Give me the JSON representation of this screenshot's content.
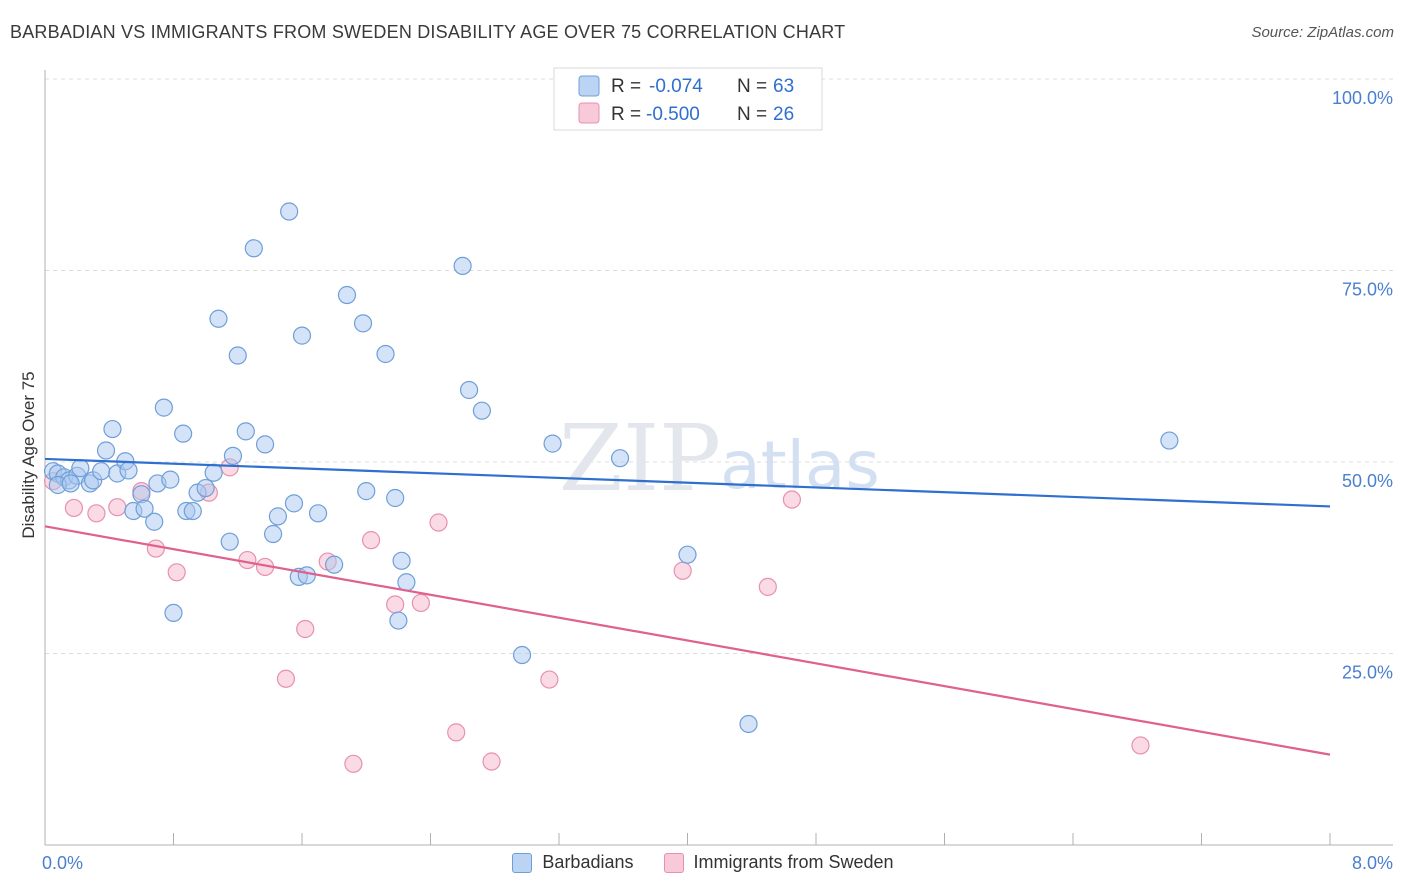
{
  "title": "BARBADIAN VS IMMIGRANTS FROM SWEDEN DISABILITY AGE OVER 75 CORRELATION CHART",
  "source": "Source: ZipAtlas.com",
  "watermark": {
    "zip": "ZIP",
    "atlas": "atlas"
  },
  "colors": {
    "blue_fill": "#a9c8f0",
    "blue_stroke": "#6f9fd8",
    "blue_line": "#2f6fcf",
    "pink_fill": "#f5b8cb",
    "pink_stroke": "#e890ad",
    "pink_line": "#e0608e",
    "tick_text": "#4a7fd0",
    "grid": "#dcdcdc"
  },
  "legend_box": {
    "rows": [
      {
        "r_label": "R =",
        "r_value": "-0.074",
        "n_label": "N =",
        "n_value": "63",
        "series": "blue"
      },
      {
        "r_label": "R =",
        "r_value": "-0.500",
        "n_label": "N =",
        "n_value": "26",
        "series": "pink"
      }
    ]
  },
  "chart_data": {
    "type": "scatter",
    "title": "BARBADIAN VS IMMIGRANTS FROM SWEDEN DISABILITY AGE OVER 75 CORRELATION CHART",
    "xlabel": "",
    "ylabel": "Disability Age Over 75",
    "xlim": [
      0,
      8
    ],
    "ylim": [
      0,
      100
    ],
    "x_tick_labels": [
      "0.0%",
      "8.0%"
    ],
    "y_ticks": [
      {
        "value": 25,
        "label": "25.0%"
      },
      {
        "value": 50,
        "label": "50.0%"
      },
      {
        "value": 75,
        "label": "75.0%"
      },
      {
        "value": 100,
        "label": "100.0%"
      }
    ],
    "series": [
      {
        "name": "Barbadians",
        "color": "blue",
        "trend": {
          "x": [
            0,
            8
          ],
          "y": [
            50.4,
            44.2
          ]
        },
        "points": [
          [
            0.05,
            48.8
          ],
          [
            0.08,
            48.5
          ],
          [
            0.12,
            48.0
          ],
          [
            0.15,
            47.6
          ],
          [
            0.2,
            48.2
          ],
          [
            0.22,
            49.2
          ],
          [
            0.28,
            47.2
          ],
          [
            0.3,
            47.6
          ],
          [
            0.35,
            48.8
          ],
          [
            0.38,
            51.5
          ],
          [
            0.42,
            54.3
          ],
          [
            0.45,
            48.5
          ],
          [
            0.5,
            50.1
          ],
          [
            0.52,
            48.9
          ],
          [
            0.55,
            43.6
          ],
          [
            0.6,
            45.8
          ],
          [
            0.62,
            43.9
          ],
          [
            0.68,
            42.2
          ],
          [
            0.7,
            47.2
          ],
          [
            0.74,
            57.1
          ],
          [
            0.78,
            47.7
          ],
          [
            0.86,
            53.7
          ],
          [
            0.88,
            43.6
          ],
          [
            0.92,
            43.6
          ],
          [
            0.95,
            46.0
          ],
          [
            1.0,
            46.6
          ],
          [
            1.05,
            48.6
          ],
          [
            1.08,
            68.7
          ],
          [
            1.15,
            39.6
          ],
          [
            1.17,
            50.8
          ],
          [
            1.2,
            63.9
          ],
          [
            1.25,
            54.0
          ],
          [
            1.3,
            77.9
          ],
          [
            1.37,
            52.3
          ],
          [
            1.42,
            40.6
          ],
          [
            1.45,
            42.9
          ],
          [
            1.52,
            82.7
          ],
          [
            1.55,
            44.6
          ],
          [
            1.6,
            66.5
          ],
          [
            1.58,
            35.0
          ],
          [
            1.63,
            35.2
          ],
          [
            1.7,
            43.3
          ],
          [
            1.8,
            36.6
          ],
          [
            1.88,
            71.8
          ],
          [
            1.98,
            68.1
          ],
          [
            2.0,
            46.2
          ],
          [
            2.12,
            64.1
          ],
          [
            2.18,
            45.3
          ],
          [
            2.22,
            37.1
          ],
          [
            2.25,
            34.3
          ],
          [
            2.2,
            29.3
          ],
          [
            2.6,
            75.6
          ],
          [
            2.64,
            59.4
          ],
          [
            2.72,
            56.7
          ],
          [
            2.97,
            24.8
          ],
          [
            3.16,
            52.4
          ],
          [
            3.58,
            50.5
          ],
          [
            4.0,
            37.9
          ],
          [
            4.38,
            15.8
          ],
          [
            7.0,
            52.8
          ],
          [
            0.08,
            47.0
          ],
          [
            0.16,
            47.2
          ],
          [
            0.8,
            30.3
          ]
        ]
      },
      {
        "name": "Immigrants from Sweden",
        "color": "pink",
        "trend": {
          "x": [
            0,
            8
          ],
          "y": [
            41.6,
            11.8
          ]
        },
        "points": [
          [
            0.05,
            47.5
          ],
          [
            0.18,
            44.0
          ],
          [
            0.32,
            43.3
          ],
          [
            0.45,
            44.1
          ],
          [
            0.6,
            46.2
          ],
          [
            0.69,
            38.7
          ],
          [
            0.82,
            35.6
          ],
          [
            1.02,
            46.0
          ],
          [
            1.15,
            49.3
          ],
          [
            1.26,
            37.2
          ],
          [
            1.37,
            36.3
          ],
          [
            1.5,
            21.7
          ],
          [
            1.62,
            28.2
          ],
          [
            1.76,
            37.0
          ],
          [
            1.92,
            10.6
          ],
          [
            2.03,
            39.8
          ],
          [
            2.18,
            31.4
          ],
          [
            2.34,
            31.6
          ],
          [
            2.45,
            42.1
          ],
          [
            2.56,
            14.7
          ],
          [
            2.78,
            10.9
          ],
          [
            3.14,
            21.6
          ],
          [
            3.97,
            35.8
          ],
          [
            4.5,
            33.7
          ],
          [
            4.65,
            45.1
          ],
          [
            6.82,
            13.0
          ]
        ]
      }
    ]
  },
  "bottom_legend": [
    {
      "label": "Barbadians",
      "series": "blue"
    },
    {
      "label": "Immigrants from Sweden",
      "series": "pink"
    }
  ]
}
